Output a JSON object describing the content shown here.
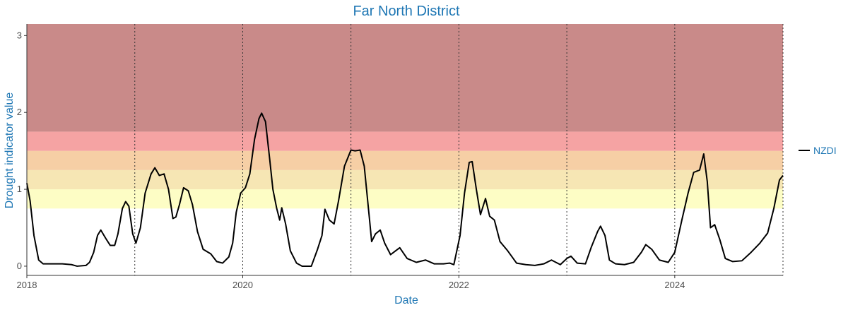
{
  "chart_data": {
    "type": "line",
    "title": "Far North District",
    "xlabel": "Date",
    "ylabel": "Drought indicator value",
    "xlim": [
      "2018-01-01",
      "2025-01-01"
    ],
    "ylim": [
      -0.12,
      3.15
    ],
    "x_ticks": [
      "2018",
      "2020",
      "2022",
      "2024"
    ],
    "y_ticks": [
      "0",
      "1",
      "2",
      "3"
    ],
    "year_lines": [
      "2019",
      "2020",
      "2021",
      "2022",
      "2023",
      "2024",
      "2025"
    ],
    "grid": false,
    "legend_position": "right",
    "bands": [
      {
        "from": 0.75,
        "to": 1.0,
        "color": "#fdfdc5"
      },
      {
        "from": 1.0,
        "to": 1.25,
        "color": "#f6e6b4"
      },
      {
        "from": 1.25,
        "to": 1.5,
        "color": "#f6cfa5"
      },
      {
        "from": 1.5,
        "to": 1.75,
        "color": "#f5a3a3"
      },
      {
        "from": 1.75,
        "to": 3.15,
        "color": "#c98a89"
      }
    ],
    "series": [
      {
        "name": "NZDI",
        "color": "#000000",
        "points": [
          [
            "2018-01-01",
            1.08
          ],
          [
            "2018-01-12",
            0.85
          ],
          [
            "2018-01-25",
            0.4
          ],
          [
            "2018-02-10",
            0.08
          ],
          [
            "2018-02-25",
            0.03
          ],
          [
            "2018-04-01",
            0.03
          ],
          [
            "2018-05-01",
            0.03
          ],
          [
            "2018-06-01",
            0.02
          ],
          [
            "2018-06-20",
            0.0
          ],
          [
            "2018-07-20",
            0.01
          ],
          [
            "2018-08-01",
            0.05
          ],
          [
            "2018-08-15",
            0.18
          ],
          [
            "2018-08-28",
            0.4
          ],
          [
            "2018-09-08",
            0.47
          ],
          [
            "2018-09-25",
            0.36
          ],
          [
            "2018-10-10",
            0.27
          ],
          [
            "2018-10-25",
            0.27
          ],
          [
            "2018-11-05",
            0.42
          ],
          [
            "2018-11-20",
            0.75
          ],
          [
            "2018-12-01",
            0.84
          ],
          [
            "2018-12-12",
            0.78
          ],
          [
            "2018-12-25",
            0.42
          ],
          [
            "2019-01-05",
            0.3
          ],
          [
            "2019-01-20",
            0.5
          ],
          [
            "2019-02-05",
            0.95
          ],
          [
            "2019-02-25",
            1.2
          ],
          [
            "2019-03-10",
            1.28
          ],
          [
            "2019-03-25",
            1.18
          ],
          [
            "2019-04-10",
            1.2
          ],
          [
            "2019-04-25",
            1.0
          ],
          [
            "2019-05-10",
            0.62
          ],
          [
            "2019-05-20",
            0.64
          ],
          [
            "2019-06-01",
            0.8
          ],
          [
            "2019-06-15",
            1.02
          ],
          [
            "2019-07-01",
            0.98
          ],
          [
            "2019-07-15",
            0.8
          ],
          [
            "2019-08-01",
            0.45
          ],
          [
            "2019-08-20",
            0.22
          ],
          [
            "2019-09-15",
            0.16
          ],
          [
            "2019-10-05",
            0.06
          ],
          [
            "2019-10-25",
            0.04
          ],
          [
            "2019-11-15",
            0.12
          ],
          [
            "2019-11-28",
            0.3
          ],
          [
            "2019-12-10",
            0.7
          ],
          [
            "2019-12-25",
            0.95
          ],
          [
            "2020-01-10",
            1.02
          ],
          [
            "2020-01-25",
            1.2
          ],
          [
            "2020-02-10",
            1.65
          ],
          [
            "2020-02-25",
            1.92
          ],
          [
            "2020-03-05",
            1.99
          ],
          [
            "2020-03-18",
            1.88
          ],
          [
            "2020-04-01",
            1.4
          ],
          [
            "2020-04-12",
            1.0
          ],
          [
            "2020-04-25",
            0.75
          ],
          [
            "2020-05-05",
            0.6
          ],
          [
            "2020-05-12",
            0.76
          ],
          [
            "2020-05-25",
            0.55
          ],
          [
            "2020-06-10",
            0.2
          ],
          [
            "2020-07-01",
            0.04
          ],
          [
            "2020-07-20",
            0.0
          ],
          [
            "2020-08-20",
            0.0
          ],
          [
            "2020-09-10",
            0.22
          ],
          [
            "2020-09-25",
            0.4
          ],
          [
            "2020-10-05",
            0.74
          ],
          [
            "2020-10-20",
            0.6
          ],
          [
            "2020-11-05",
            0.55
          ],
          [
            "2020-11-20",
            0.85
          ],
          [
            "2020-12-10",
            1.3
          ],
          [
            "2021-01-01",
            1.51
          ],
          [
            "2021-01-15",
            1.5
          ],
          [
            "2021-02-01",
            1.51
          ],
          [
            "2021-02-15",
            1.3
          ],
          [
            "2021-03-05",
            0.6
          ],
          [
            "2021-03-12",
            0.32
          ],
          [
            "2021-03-25",
            0.42
          ],
          [
            "2021-04-10",
            0.47
          ],
          [
            "2021-04-25",
            0.3
          ],
          [
            "2021-05-15",
            0.15
          ],
          [
            "2021-06-01",
            0.2
          ],
          [
            "2021-06-15",
            0.24
          ],
          [
            "2021-07-10",
            0.1
          ],
          [
            "2021-08-10",
            0.05
          ],
          [
            "2021-09-10",
            0.08
          ],
          [
            "2021-10-10",
            0.03
          ],
          [
            "2021-11-10",
            0.03
          ],
          [
            "2021-12-01",
            0.04
          ],
          [
            "2021-12-15",
            0.02
          ],
          [
            "2022-01-05",
            0.4
          ],
          [
            "2022-01-20",
            0.95
          ],
          [
            "2022-02-05",
            1.35
          ],
          [
            "2022-02-15",
            1.36
          ],
          [
            "2022-03-01",
            1.0
          ],
          [
            "2022-03-15",
            0.67
          ],
          [
            "2022-04-01",
            0.88
          ],
          [
            "2022-04-15",
            0.65
          ],
          [
            "2022-05-01",
            0.6
          ],
          [
            "2022-05-20",
            0.32
          ],
          [
            "2022-06-15",
            0.2
          ],
          [
            "2022-07-15",
            0.04
          ],
          [
            "2022-08-15",
            0.02
          ],
          [
            "2022-09-15",
            0.01
          ],
          [
            "2022-10-15",
            0.03
          ],
          [
            "2022-11-10",
            0.08
          ],
          [
            "2022-12-10",
            0.02
          ],
          [
            "2023-01-01",
            0.1
          ],
          [
            "2023-01-15",
            0.13
          ],
          [
            "2023-02-05",
            0.04
          ],
          [
            "2023-03-05",
            0.03
          ],
          [
            "2023-03-25",
            0.25
          ],
          [
            "2023-04-15",
            0.45
          ],
          [
            "2023-04-25",
            0.52
          ],
          [
            "2023-05-10",
            0.4
          ],
          [
            "2023-05-25",
            0.08
          ],
          [
            "2023-06-15",
            0.03
          ],
          [
            "2023-07-15",
            0.02
          ],
          [
            "2023-08-15",
            0.05
          ],
          [
            "2023-09-10",
            0.18
          ],
          [
            "2023-09-25",
            0.28
          ],
          [
            "2023-10-15",
            0.22
          ],
          [
            "2023-11-10",
            0.08
          ],
          [
            "2023-12-10",
            0.05
          ],
          [
            "2024-01-01",
            0.18
          ],
          [
            "2024-01-25",
            0.6
          ],
          [
            "2024-02-15",
            0.95
          ],
          [
            "2024-03-05",
            1.22
          ],
          [
            "2024-03-25",
            1.25
          ],
          [
            "2024-04-08",
            1.46
          ],
          [
            "2024-04-20",
            1.1
          ],
          [
            "2024-05-01",
            0.5
          ],
          [
            "2024-05-15",
            0.54
          ],
          [
            "2024-06-01",
            0.35
          ],
          [
            "2024-06-20",
            0.1
          ],
          [
            "2024-07-15",
            0.06
          ],
          [
            "2024-08-15",
            0.07
          ],
          [
            "2024-09-15",
            0.18
          ],
          [
            "2024-10-15",
            0.3
          ],
          [
            "2024-11-10",
            0.43
          ],
          [
            "2024-12-01",
            0.75
          ],
          [
            "2024-12-20",
            1.12
          ],
          [
            "2025-01-01",
            1.18
          ]
        ]
      }
    ]
  }
}
